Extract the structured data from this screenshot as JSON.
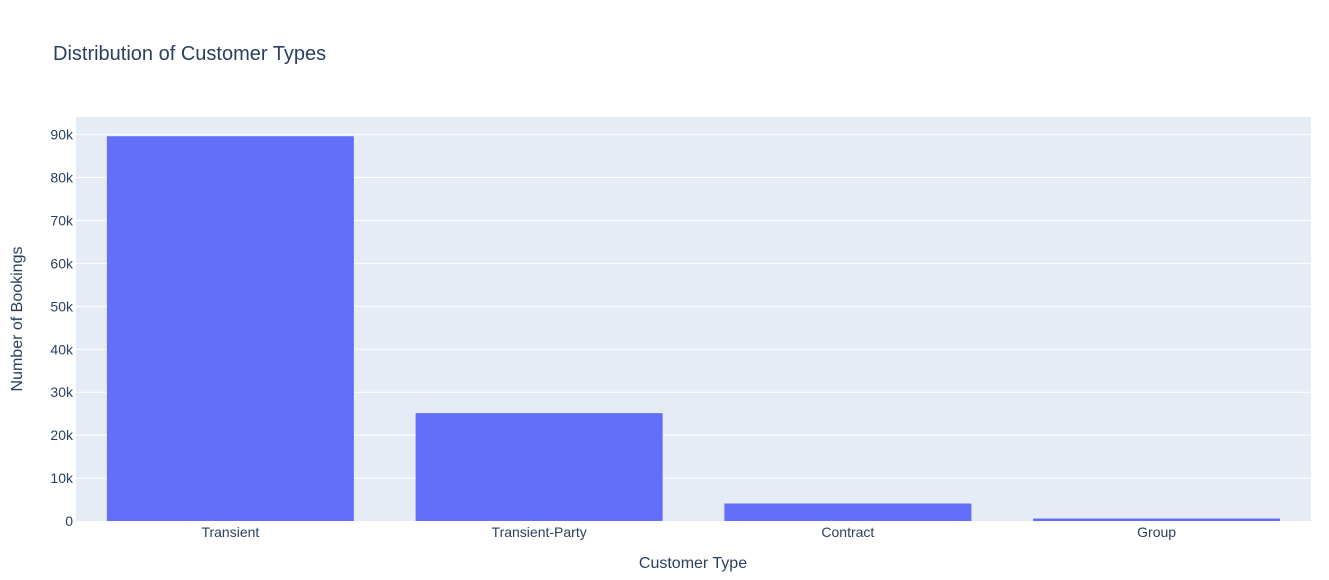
{
  "chart_data": {
    "type": "bar",
    "title": "Distribution of Customer Types",
    "xlabel": "Customer Type",
    "ylabel": "Number of Bookings",
    "categories": [
      "Transient",
      "Transient-Party",
      "Contract",
      "Group"
    ],
    "values": [
      89613,
      25124,
      4076,
      577
    ],
    "ylim": [
      0,
      94095
    ],
    "yticks": [
      0,
      10000,
      20000,
      30000,
      40000,
      50000,
      60000,
      70000,
      80000,
      90000
    ],
    "ytick_labels": [
      "0",
      "10k",
      "20k",
      "30k",
      "40k",
      "50k",
      "60k",
      "70k",
      "80k",
      "90k"
    ],
    "grid": true,
    "legend": "none"
  },
  "colors": {
    "bar": "#636efa",
    "plot_bg": "#e5ecf6",
    "grid": "#ffffff",
    "text": "#2a3f5f"
  }
}
